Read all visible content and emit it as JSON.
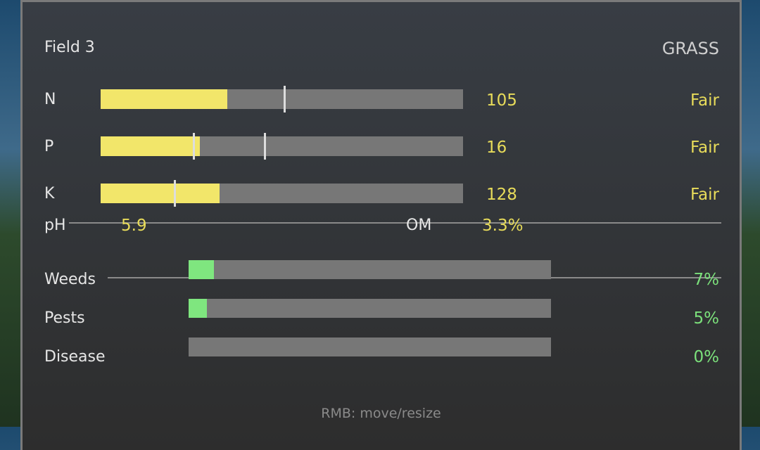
{
  "header": {
    "title": "Field 3",
    "crop": "GRASS"
  },
  "nutrients": [
    {
      "label": "N",
      "value": "105",
      "status": "Fair",
      "fill": 0.35,
      "markers": [
        0.505
      ]
    },
    {
      "label": "P",
      "value": "16",
      "status": "Fair",
      "fill": 0.274,
      "markers": [
        0.254,
        0.45
      ]
    },
    {
      "label": "K",
      "value": "128",
      "status": "Fair",
      "fill": 0.328,
      "markers": [
        0.202
      ]
    }
  ],
  "soil": {
    "ph_label": "pH",
    "ph_value": "5.9",
    "om_label": "OM",
    "om_value": "3.3%"
  },
  "threats": [
    {
      "label": "Weeds",
      "value": "7%",
      "fill": 0.07
    },
    {
      "label": "Pests",
      "value": "5%",
      "fill": 0.05
    },
    {
      "label": "Disease",
      "value": "0%",
      "fill": 0.0
    }
  ],
  "footer": {
    "hint": "RMB: move/resize"
  },
  "colors": {
    "nutrient_fill": "#f2e66a",
    "threat_fill": "#7fe67f",
    "track": "#777777"
  }
}
